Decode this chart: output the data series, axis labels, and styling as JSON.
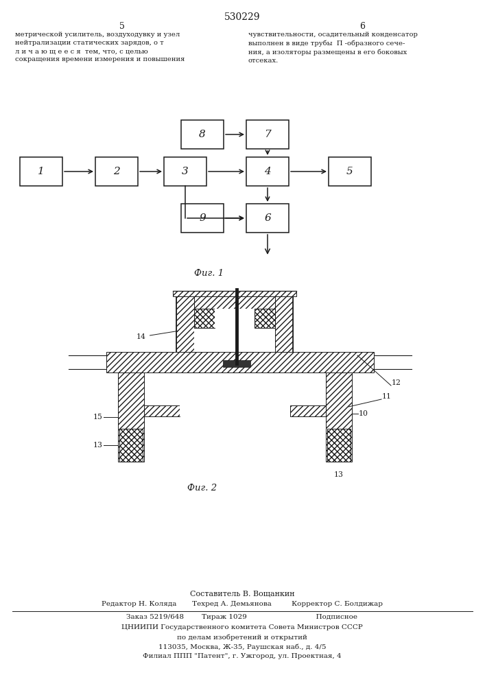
{
  "title_number": "530229",
  "page_cols": [
    "5",
    "6"
  ],
  "text_left": "метрической усилитель, воздуходувку и узел\nнейтрализации статических зарядов, о т\nл и ч а ю щ е е с я  тем, что, с целью\nсокращения времени измерения и повышения",
  "text_right": "чувствительности, осадительный конденсатор\nвыполнен в виде трубы  П -образного сече-\nния, а изоляторы размещены в его боковых\nотсеках.",
  "fig1_label": "Фиг. 1",
  "fig2_label": "Фиг. 2",
  "footer_lines": [
    "Составитель В. Вощанкин",
    "Редактор Н. Коляда       Техред А. Демьянова         Корректор С. Болдижар",
    "Заказ 5219/648        Тираж 1029                               Подписное",
    "ЦНИИПИ Государственного комитета Совета Министров СССР",
    "по делам изобретений и открытий",
    "113035, Москва, Ж-35, Раушская наб., д. 4/5",
    "Филиал ППП \"Патент\", г. Ужгород, ул. Проектная, 4"
  ],
  "bg_color": "#ffffff",
  "line_color": "#1a1a1a"
}
